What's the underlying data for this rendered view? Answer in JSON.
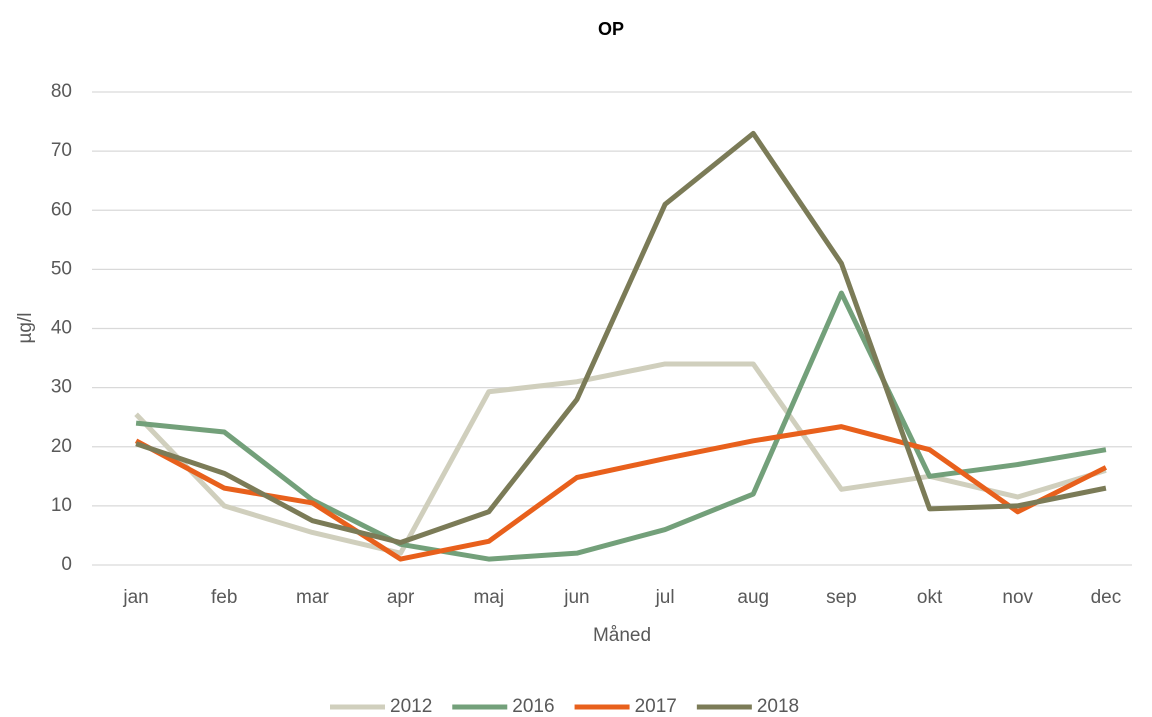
{
  "chart_data": {
    "type": "line",
    "title": "OP",
    "x_label": "Måned",
    "y_label": "µg/l",
    "categories": [
      "jan",
      "feb",
      "mar",
      "apr",
      "maj",
      "jun",
      "jul",
      "aug",
      "sep",
      "okt",
      "nov",
      "dec"
    ],
    "series": [
      {
        "name": "2012",
        "color": "#d0cfbd",
        "values": [
          25.5,
          10,
          5.5,
          2,
          29.3,
          31,
          34,
          34,
          12.8,
          15,
          11.5,
          16
        ]
      },
      {
        "name": "2016",
        "color": "#73a07a",
        "values": [
          24,
          22.5,
          11,
          3.5,
          1,
          2,
          6,
          12,
          46,
          15,
          17,
          19.5
        ]
      },
      {
        "name": "2017",
        "color": "#e8601c",
        "values": [
          21,
          13,
          10.5,
          1,
          4,
          14.8,
          18,
          21,
          23.4,
          19.5,
          9,
          16.5
        ]
      },
      {
        "name": "2018",
        "color": "#7b7b57",
        "values": [
          20.5,
          15.5,
          7.5,
          3.8,
          9,
          28,
          61,
          73,
          51,
          9.5,
          10,
          13
        ]
      }
    ],
    "ylim": [
      0,
      80
    ],
    "yticks": [
      0,
      10,
      20,
      30,
      40,
      50,
      60,
      70,
      80
    ],
    "grid": true,
    "legend": "bottom"
  }
}
